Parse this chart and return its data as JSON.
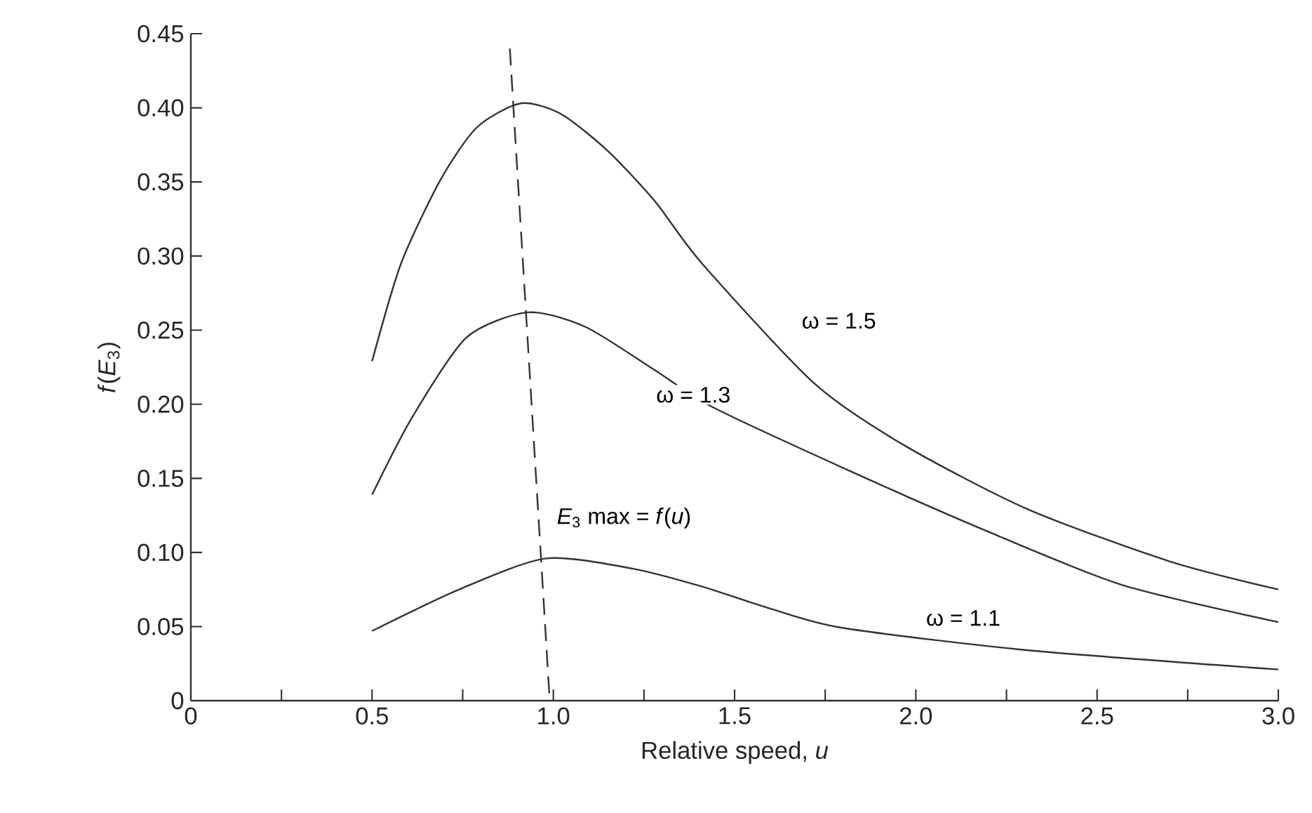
{
  "chart_data": {
    "type": "line",
    "xlabel": "Relative speed, *u*",
    "ylabel": "*f*(*E*$_{3}$)",
    "xlim": [
      0,
      3.0
    ],
    "ylim": [
      0,
      0.45
    ],
    "xticks": [
      0,
      {
        "value": 0.25,
        "label": null
      },
      0.5,
      {
        "value": 0.75,
        "label": null
      },
      {
        "value": 1,
        "label": "1.0"
      },
      {
        "value": 1.25,
        "label": null
      },
      1.5,
      {
        "value": 1.75,
        "label": null
      },
      {
        "value": 2,
        "label": "2.0"
      },
      {
        "value": 2.25,
        "label": null
      },
      2.5,
      {
        "value": 2.75,
        "label": null
      },
      {
        "value": 3,
        "label": "3.0"
      }
    ],
    "yticks": [
      0,
      0.05,
      {
        "value": 0.1,
        "label": "0.10"
      },
      0.15,
      {
        "value": 0.2,
        "label": "0.20"
      },
      0.25,
      {
        "value": 0.3,
        "label": "0.30"
      },
      0.35,
      {
        "value": 0.4,
        "label": "0.40"
      },
      0.45
    ],
    "series": [
      {
        "name": "ω = 1.5",
        "color": "#333333",
        "x": [
          0.5,
          0.58,
          0.69,
          0.79,
          0.91,
          1.02,
          1.15,
          1.28,
          1.41,
          1.72,
          1.97,
          2.31,
          2.7,
          3.0
        ],
        "values": [
          0.229,
          0.295,
          0.352,
          0.387,
          0.403,
          0.396,
          0.371,
          0.337,
          0.295,
          0.214,
          0.172,
          0.129,
          0.094,
          0.075
        ]
      },
      {
        "name": "ω = 1.3",
        "color": "#333333",
        "x": [
          0.5,
          0.61,
          0.76,
          0.93,
          1.09,
          1.28,
          1.44,
          1.8,
          2.19,
          2.57,
          3.0
        ],
        "values": [
          0.139,
          0.191,
          0.245,
          0.262,
          0.252,
          0.223,
          0.198,
          0.157,
          0.115,
          0.078,
          0.053
        ]
      },
      {
        "name": "ω = 1.1",
        "color": "#333333",
        "x": [
          0.5,
          0.74,
          0.98,
          1.22,
          1.41,
          1.6,
          1.8,
          2.31,
          3.0
        ],
        "values": [
          0.047,
          0.075,
          0.096,
          0.089,
          0.077,
          0.062,
          0.049,
          0.034,
          0.021
        ]
      },
      {
        "name": "*E*$_{3}$ max = *f*(*u*)",
        "color": "#333333",
        "line_style": "dashed",
        "x": [
          0.88,
          0.99
        ],
        "values": [
          0.44,
          0.0
        ]
      }
    ]
  }
}
